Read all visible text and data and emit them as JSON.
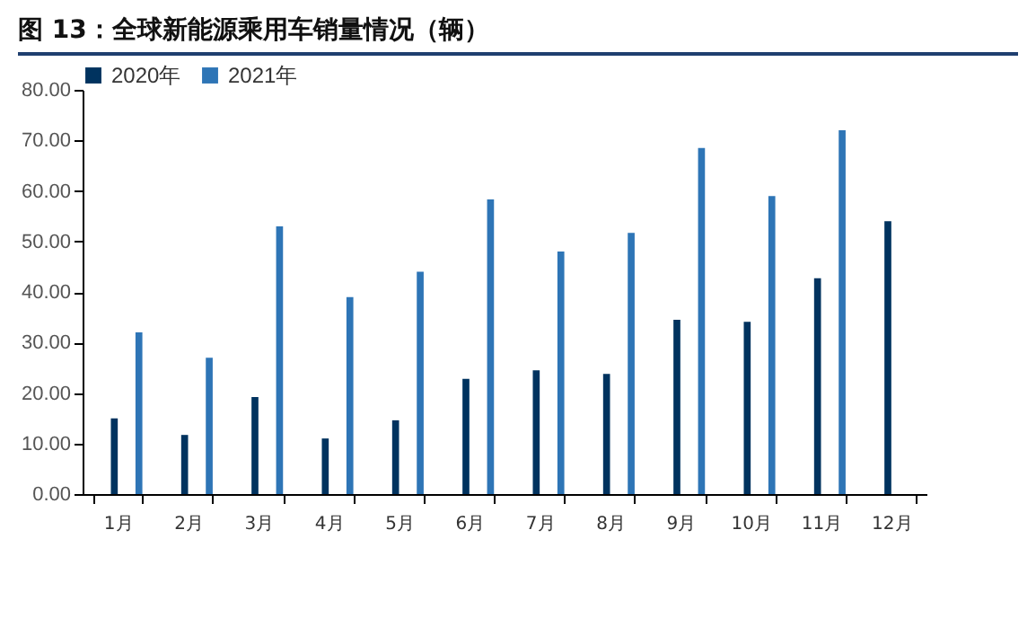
{
  "chart_data": {
    "type": "bar",
    "title": "图 13：全球新能源乘用车销量情况（辆）",
    "categories": [
      "1月",
      "2月",
      "3月",
      "4月",
      "5月",
      "6月",
      "7月",
      "8月",
      "9月",
      "10月",
      "11月",
      "12月"
    ],
    "series": [
      {
        "name": "2020年",
        "color": "#00335f",
        "values": [
          15,
          11.7,
          19.2,
          11,
          14.6,
          22.8,
          24.5,
          23.8,
          34.5,
          34.1,
          42.7,
          54
        ]
      },
      {
        "name": "2021年",
        "color": "#2e75b6",
        "values": [
          32,
          27,
          53,
          39,
          44,
          58.3,
          48,
          51.7,
          68.5,
          59,
          72,
          null
        ]
      }
    ],
    "ylim": [
      0,
      80
    ],
    "yticks": [
      {
        "value": 0,
        "label": "0.00"
      },
      {
        "value": 10,
        "label": "10.00"
      },
      {
        "value": 20,
        "label": "20.00"
      },
      {
        "value": 30,
        "label": "30.00"
      },
      {
        "value": 40,
        "label": "40.00"
      },
      {
        "value": 50,
        "label": "50.00"
      },
      {
        "value": 60,
        "label": "60.00"
      },
      {
        "value": 70,
        "label": "70.00"
      },
      {
        "value": 80,
        "label": "80.00"
      }
    ],
    "grid": false,
    "legend": "top"
  }
}
